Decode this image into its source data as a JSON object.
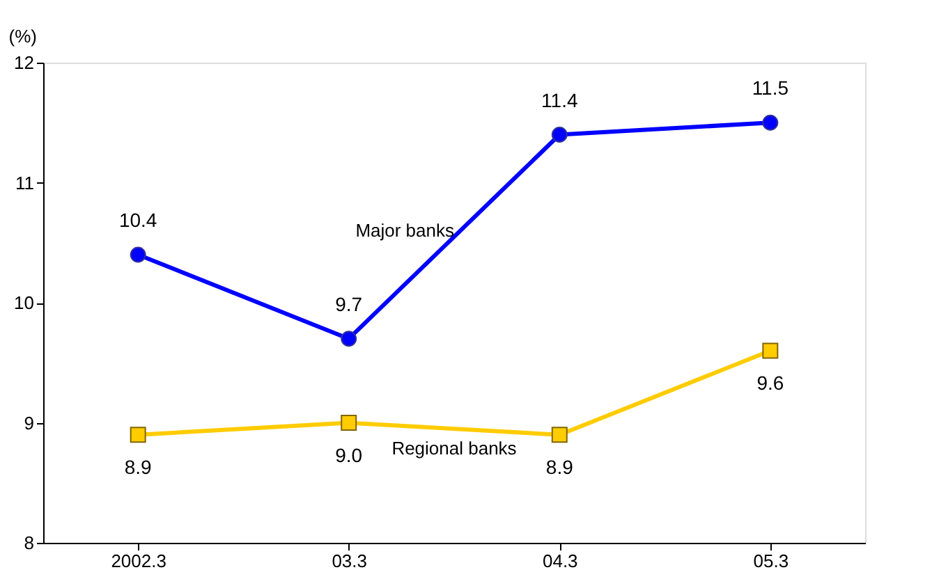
{
  "chart_data": {
    "type": "line",
    "ylabel": "(%)",
    "categories": [
      "2002.3",
      "03.3",
      "04.3",
      "05.3"
    ],
    "series": [
      {
        "name": "Major banks",
        "color": "#0000ff",
        "values": [
          10.4,
          9.7,
          11.4,
          11.5
        ],
        "marker": "circle",
        "value_labels": [
          "10.4",
          "9.7",
          "11.4",
          "11.5"
        ]
      },
      {
        "name": "Regional banks",
        "color": "#ffcc00",
        "values": [
          8.9,
          9.0,
          8.9,
          9.6
        ],
        "marker": "square",
        "value_labels": [
          "8.9",
          "9.0",
          "8.9",
          "9.6"
        ]
      }
    ],
    "ylim": [
      8,
      12
    ],
    "yticks": [
      8,
      9,
      10,
      11,
      12
    ],
    "line_style": "solid"
  }
}
